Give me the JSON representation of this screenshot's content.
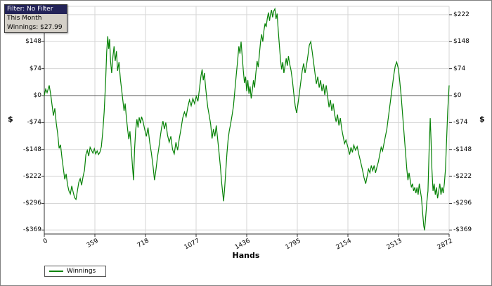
{
  "filter_box": {
    "filter": "Filter: No Filter",
    "period": "This Month",
    "winnings": "Winnings: $27.99"
  },
  "axes": {
    "x_title": "Hands",
    "y_title_left": "$",
    "y_title_right": "$",
    "x_ticks": [
      "0",
      "359",
      "718",
      "1077",
      "1436",
      "1795",
      "2154",
      "2513",
      "2872"
    ],
    "y_ticks": [
      "$222",
      "$148",
      "$74",
      "$0",
      "-$74",
      "-$148",
      "-$222",
      "-$296",
      "-$369"
    ]
  },
  "legend": {
    "label": "Winnings",
    "line_color": "#068206"
  },
  "chart_data": {
    "type": "line",
    "title": "",
    "xlabel": "Hands",
    "ylabel": "$",
    "x_range": [
      0,
      2872
    ],
    "ylim": [
      -380,
      245
    ],
    "x_axis_ticks": [
      0,
      359,
      718,
      1077,
      1436,
      1795,
      2154,
      2513,
      2872
    ],
    "y_axis_ticks": [
      222,
      148,
      74,
      0,
      -74,
      -148,
      -222,
      -296,
      -369
    ],
    "grid": true,
    "legend_position": "bottom-left",
    "series": [
      {
        "name": "Winnings",
        "color": "#068206",
        "points": [
          [
            0,
            0
          ],
          [
            10,
            18
          ],
          [
            20,
            8
          ],
          [
            35,
            28
          ],
          [
            45,
            5
          ],
          [
            55,
            -25
          ],
          [
            65,
            -55
          ],
          [
            75,
            -35
          ],
          [
            85,
            -75
          ],
          [
            95,
            -105
          ],
          [
            105,
            -145
          ],
          [
            115,
            -135
          ],
          [
            125,
            -170
          ],
          [
            135,
            -200
          ],
          [
            145,
            -230
          ],
          [
            155,
            -215
          ],
          [
            165,
            -245
          ],
          [
            175,
            -262
          ],
          [
            185,
            -270
          ],
          [
            195,
            -248
          ],
          [
            205,
            -265
          ],
          [
            215,
            -280
          ],
          [
            225,
            -285
          ],
          [
            235,
            -262
          ],
          [
            245,
            -238
          ],
          [
            255,
            -228
          ],
          [
            265,
            -246
          ],
          [
            275,
            -222
          ],
          [
            285,
            -205
          ],
          [
            295,
            -162
          ],
          [
            305,
            -150
          ],
          [
            315,
            -166
          ],
          [
            325,
            -142
          ],
          [
            335,
            -150
          ],
          [
            345,
            -158
          ],
          [
            355,
            -146
          ],
          [
            365,
            -160
          ],
          [
            375,
            -152
          ],
          [
            385,
            -162
          ],
          [
            395,
            -155
          ],
          [
            405,
            -140
          ],
          [
            415,
            -100
          ],
          [
            425,
            -45
          ],
          [
            435,
            35
          ],
          [
            443,
            120
          ],
          [
            450,
            163
          ],
          [
            457,
            128
          ],
          [
            463,
            155
          ],
          [
            470,
            95
          ],
          [
            478,
            62
          ],
          [
            487,
            108
          ],
          [
            495,
            135
          ],
          [
            503,
            95
          ],
          [
            512,
            122
          ],
          [
            520,
            68
          ],
          [
            530,
            92
          ],
          [
            540,
            45
          ],
          [
            550,
            12
          ],
          [
            558,
            -15
          ],
          [
            566,
            -42
          ],
          [
            574,
            -22
          ],
          [
            582,
            -58
          ],
          [
            592,
            -95
          ],
          [
            600,
            -120
          ],
          [
            608,
            -98
          ],
          [
            617,
            -145
          ],
          [
            626,
            -195
          ],
          [
            633,
            -232
          ],
          [
            640,
            -150
          ],
          [
            648,
            -95
          ],
          [
            657,
            -65
          ],
          [
            665,
            -88
          ],
          [
            673,
            -60
          ],
          [
            682,
            -76
          ],
          [
            690,
            -58
          ],
          [
            700,
            -70
          ],
          [
            712,
            -92
          ],
          [
            724,
            -112
          ],
          [
            736,
            -88
          ],
          [
            748,
            -128
          ],
          [
            760,
            -158
          ],
          [
            772,
            -195
          ],
          [
            782,
            -232
          ],
          [
            792,
            -205
          ],
          [
            802,
            -172
          ],
          [
            812,
            -145
          ],
          [
            822,
            -115
          ],
          [
            832,
            -88
          ],
          [
            842,
            -70
          ],
          [
            852,
            -92
          ],
          [
            862,
            -74
          ],
          [
            874,
            -108
          ],
          [
            886,
            -128
          ],
          [
            898,
            -112
          ],
          [
            910,
            -148
          ],
          [
            922,
            -160
          ],
          [
            934,
            -128
          ],
          [
            946,
            -150
          ],
          [
            958,
            -118
          ],
          [
            970,
            -92
          ],
          [
            982,
            -62
          ],
          [
            994,
            -45
          ],
          [
            1006,
            -58
          ],
          [
            1018,
            -32
          ],
          [
            1030,
            -12
          ],
          [
            1042,
            -28
          ],
          [
            1054,
            -8
          ],
          [
            1066,
            -22
          ],
          [
            1078,
            -2
          ],
          [
            1090,
            -16
          ],
          [
            1102,
            22
          ],
          [
            1112,
            55
          ],
          [
            1120,
            72
          ],
          [
            1128,
            42
          ],
          [
            1136,
            62
          ],
          [
            1144,
            25
          ],
          [
            1152,
            -5
          ],
          [
            1160,
            -32
          ],
          [
            1170,
            -55
          ],
          [
            1180,
            -78
          ],
          [
            1190,
            -118
          ],
          [
            1200,
            -92
          ],
          [
            1210,
            -112
          ],
          [
            1220,
            -82
          ],
          [
            1230,
            -120
          ],
          [
            1240,
            -158
          ],
          [
            1250,
            -198
          ],
          [
            1258,
            -238
          ],
          [
            1266,
            -268
          ],
          [
            1272,
            -290
          ],
          [
            1280,
            -252
          ],
          [
            1288,
            -205
          ],
          [
            1296,
            -158
          ],
          [
            1304,
            -122
          ],
          [
            1312,
            -98
          ],
          [
            1322,
            -78
          ],
          [
            1332,
            -55
          ],
          [
            1342,
            -30
          ],
          [
            1352,
            15
          ],
          [
            1362,
            58
          ],
          [
            1372,
            98
          ],
          [
            1380,
            135
          ],
          [
            1388,
            115
          ],
          [
            1396,
            148
          ],
          [
            1404,
            108
          ],
          [
            1412,
            68
          ],
          [
            1420,
            35
          ],
          [
            1428,
            52
          ],
          [
            1436,
            12
          ],
          [
            1444,
            42
          ],
          [
            1452,
            5
          ],
          [
            1460,
            25
          ],
          [
            1468,
            -8
          ],
          [
            1476,
            15
          ],
          [
            1484,
            42
          ],
          [
            1492,
            22
          ],
          [
            1500,
            58
          ],
          [
            1510,
            95
          ],
          [
            1518,
            78
          ],
          [
            1526,
            115
          ],
          [
            1534,
            148
          ],
          [
            1542,
            168
          ],
          [
            1550,
            148
          ],
          [
            1558,
            178
          ],
          [
            1566,
            198
          ],
          [
            1574,
            188
          ],
          [
            1582,
            212
          ],
          [
            1590,
            228
          ],
          [
            1598,
            205
          ],
          [
            1604,
            222
          ],
          [
            1612,
            235
          ],
          [
            1620,
            215
          ],
          [
            1628,
            232
          ],
          [
            1636,
            238
          ],
          [
            1644,
            210
          ],
          [
            1652,
            225
          ],
          [
            1660,
            178
          ],
          [
            1668,
            138
          ],
          [
            1676,
            98
          ],
          [
            1684,
            72
          ],
          [
            1692,
            92
          ],
          [
            1700,
            62
          ],
          [
            1708,
            82
          ],
          [
            1716,
            102
          ],
          [
            1724,
            82
          ],
          [
            1732,
            108
          ],
          [
            1740,
            88
          ],
          [
            1750,
            70
          ],
          [
            1760,
            42
          ],
          [
            1770,
            5
          ],
          [
            1780,
            -28
          ],
          [
            1790,
            -48
          ],
          [
            1800,
            -22
          ],
          [
            1810,
            8
          ],
          [
            1820,
            38
          ],
          [
            1830,
            68
          ],
          [
            1840,
            88
          ],
          [
            1850,
            62
          ],
          [
            1860,
            82
          ],
          [
            1870,
            108
          ],
          [
            1880,
            138
          ],
          [
            1890,
            148
          ],
          [
            1900,
            122
          ],
          [
            1910,
            92
          ],
          [
            1920,
            62
          ],
          [
            1930,
            32
          ],
          [
            1940,
            52
          ],
          [
            1950,
            22
          ],
          [
            1960,
            42
          ],
          [
            1970,
            12
          ],
          [
            1980,
            32
          ],
          [
            1990,
            2
          ],
          [
            2000,
            28
          ],
          [
            2010,
            -2
          ],
          [
            2020,
            -32
          ],
          [
            2030,
            -12
          ],
          [
            2040,
            -42
          ],
          [
            2050,
            -22
          ],
          [
            2060,
            -52
          ],
          [
            2070,
            -72
          ],
          [
            2080,
            -52
          ],
          [
            2090,
            -82
          ],
          [
            2100,
            -62
          ],
          [
            2110,
            -92
          ],
          [
            2120,
            -112
          ],
          [
            2130,
            -132
          ],
          [
            2140,
            -122
          ],
          [
            2154,
            -142
          ],
          [
            2166,
            -162
          ],
          [
            2176,
            -142
          ],
          [
            2186,
            -156
          ],
          [
            2196,
            -136
          ],
          [
            2208,
            -150
          ],
          [
            2220,
            -140
          ],
          [
            2232,
            -162
          ],
          [
            2244,
            -182
          ],
          [
            2256,
            -202
          ],
          [
            2268,
            -225
          ],
          [
            2280,
            -242
          ],
          [
            2290,
            -222
          ],
          [
            2300,
            -202
          ],
          [
            2310,
            -212
          ],
          [
            2320,
            -192
          ],
          [
            2330,
            -206
          ],
          [
            2340,
            -192
          ],
          [
            2350,
            -212
          ],
          [
            2360,
            -196
          ],
          [
            2370,
            -182
          ],
          [
            2380,
            -162
          ],
          [
            2390,
            -142
          ],
          [
            2400,
            -152
          ],
          [
            2410,
            -132
          ],
          [
            2420,
            -112
          ],
          [
            2430,
            -92
          ],
          [
            2440,
            -62
          ],
          [
            2450,
            -32
          ],
          [
            2460,
            -2
          ],
          [
            2470,
            28
          ],
          [
            2480,
            58
          ],
          [
            2490,
            82
          ],
          [
            2500,
            92
          ],
          [
            2513,
            72
          ],
          [
            2522,
            38
          ],
          [
            2532,
            -2
          ],
          [
            2542,
            -52
          ],
          [
            2552,
            -102
          ],
          [
            2562,
            -152
          ],
          [
            2572,
            -202
          ],
          [
            2580,
            -232
          ],
          [
            2588,
            -212
          ],
          [
            2596,
            -232
          ],
          [
            2604,
            -252
          ],
          [
            2612,
            -242
          ],
          [
            2620,
            -262
          ],
          [
            2628,
            -252
          ],
          [
            2636,
            -268
          ],
          [
            2644,
            -252
          ],
          [
            2652,
            -272
          ],
          [
            2660,
            -242
          ],
          [
            2668,
            -262
          ],
          [
            2676,
            -282
          ],
          [
            2684,
            -322
          ],
          [
            2692,
            -358
          ],
          [
            2698,
            -370
          ],
          [
            2706,
            -332
          ],
          [
            2714,
            -292
          ],
          [
            2722,
            -262
          ],
          [
            2730,
            -152
          ],
          [
            2738,
            -62
          ],
          [
            2744,
            -122
          ],
          [
            2750,
            -202
          ],
          [
            2758,
            -262
          ],
          [
            2766,
            -242
          ],
          [
            2774,
            -272
          ],
          [
            2782,
            -252
          ],
          [
            2790,
            -282
          ],
          [
            2798,
            -262
          ],
          [
            2806,
            -242
          ],
          [
            2814,
            -272
          ],
          [
            2822,
            -252
          ],
          [
            2830,
            -268
          ],
          [
            2838,
            -242
          ],
          [
            2846,
            -202
          ],
          [
            2854,
            -122
          ],
          [
            2862,
            -42
          ],
          [
            2872,
            28
          ]
        ]
      }
    ]
  }
}
